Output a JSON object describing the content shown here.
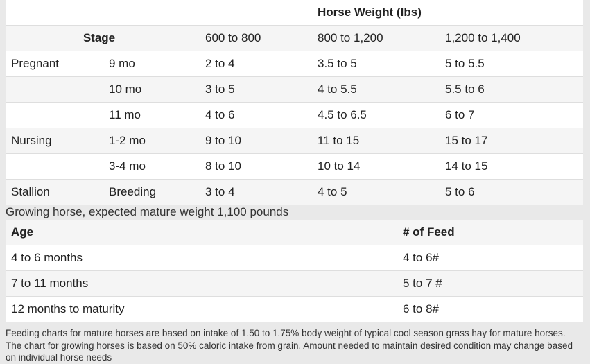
{
  "table1": {
    "title": "Horse Weight (lbs)",
    "stage_header": "Stage",
    "weights": [
      "600 to 800",
      "800 to 1,200",
      "1,200 to 1,400"
    ],
    "rows": [
      {
        "group": "Pregnant",
        "sub": "9 mo",
        "v": [
          "2 to 4",
          "3.5 to 5",
          "5 to 5.5"
        ]
      },
      {
        "group": "",
        "sub": "10 mo",
        "v": [
          "3 to 5",
          "4 to 5.5",
          "5.5 to 6"
        ]
      },
      {
        "group": "",
        "sub": "11 mo",
        "v": [
          "4 to 6",
          "4.5 to 6.5",
          "6 to 7"
        ]
      },
      {
        "group": "Nursing",
        "sub": "1-2 mo",
        "v": [
          "9 to 10",
          "11 to 15",
          "15 to 17"
        ]
      },
      {
        "group": "",
        "sub": "3-4 mo",
        "v": [
          "8 to 10",
          "10 to 14",
          "14 to 15"
        ]
      },
      {
        "group": "Stallion",
        "sub": "Breeding",
        "v": [
          "3 to 4",
          "4 to 5",
          "5 to 6"
        ]
      }
    ]
  },
  "caption": "Growing horse, expected mature weight 1,100 pounds",
  "table2": {
    "headers": [
      "Age",
      "# of Feed"
    ],
    "rows": [
      [
        "4 to 6 months",
        "4 to 6#"
      ],
      [
        "7 to 11 months",
        "5 to 7 #"
      ],
      [
        "12 months to maturity",
        "6 to 8#"
      ]
    ]
  },
  "footnote": "Feeding charts for mature horses are based on intake of 1.50 to 1.75% body weight of typical cool season grass hay for mature horses. The chart for growing horses is based on 50% caloric intake from grain. Amount needed to maintain desired condition may change based on individual horse needs"
}
